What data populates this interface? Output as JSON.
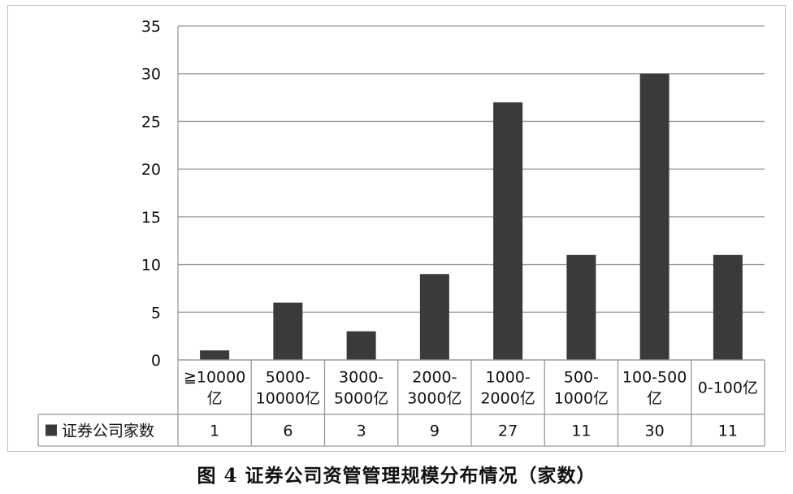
{
  "chart_data": {
    "type": "bar",
    "categories": [
      [
        "≧10000",
        "亿"
      ],
      [
        "5000-",
        "10000亿"
      ],
      [
        "3000-",
        "5000亿"
      ],
      [
        "2000-",
        "3000亿"
      ],
      [
        "1000-",
        "2000亿"
      ],
      [
        "500-",
        "1000亿"
      ],
      [
        "100-500",
        "亿"
      ],
      [
        "0-100亿"
      ]
    ],
    "series": [
      {
        "name": "证券公司家数",
        "values": [
          1,
          6,
          3,
          9,
          27,
          11,
          30,
          11
        ]
      }
    ],
    "ylim": [
      0,
      35
    ],
    "yticks": [
      0,
      5,
      10,
      15,
      20,
      25,
      30,
      35
    ],
    "grid": true,
    "data_table": true,
    "bar_color": "#3a3a3a",
    "grid_color": "#9a9a9a"
  },
  "caption": "图 4  证券公司资管管理规模分布情况（家数）"
}
